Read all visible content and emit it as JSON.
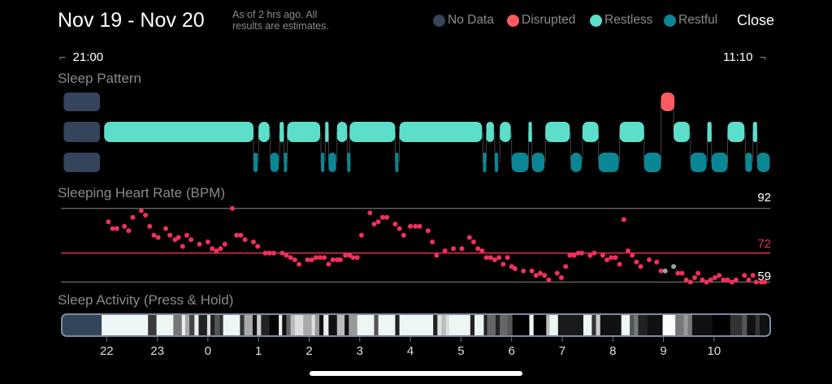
{
  "header": {
    "title": "Nov 19 - Nov 20",
    "subtitle": "As of 2 hrs ago. All results are estimates.",
    "close_label": "Close"
  },
  "legend": [
    {
      "label": "No Data",
      "color": "#34445a"
    },
    {
      "label": "Disrupted",
      "color": "#ff5a5f"
    },
    {
      "label": "Restless",
      "color": "#5cdecb"
    },
    {
      "label": "Restful",
      "color": "#0a8694"
    }
  ],
  "timeline": {
    "start": "21:00",
    "end": "11:10"
  },
  "sections": {
    "pattern": "Sleep Pattern",
    "heart": "Sleeping Heart Rate (BPM)",
    "activity": "Sleep Activity (Press & Hold)"
  },
  "chart_data": [
    {
      "type": "timeline",
      "title": "Sleep Pattern",
      "unit": "minutes after 21:00",
      "no_data": [
        [
          9,
          52
        ]
      ],
      "disrupted": [
        [
          717,
          733
        ]
      ],
      "restless": [
        [
          57,
          234
        ],
        [
          240,
          253
        ],
        [
          265,
          270
        ],
        [
          274,
          313
        ],
        [
          319,
          323
        ],
        [
          333,
          345
        ],
        [
          348,
          402
        ],
        [
          407,
          505
        ],
        [
          510,
          519
        ],
        [
          526,
          539
        ],
        [
          560,
          564
        ],
        [
          580,
          609
        ],
        [
          624,
          643
        ],
        [
          668,
          697
        ],
        [
          732,
          751
        ],
        [
          772,
          777
        ],
        [
          796,
          816
        ],
        [
          826,
          831
        ]
      ],
      "restful": [
        [
          234,
          239
        ],
        [
          254,
          264
        ],
        [
          270,
          273
        ],
        [
          314,
          318
        ],
        [
          323,
          332
        ],
        [
          345,
          349
        ],
        [
          402,
          405
        ],
        [
          506,
          509
        ],
        [
          520,
          524
        ],
        [
          540,
          560
        ],
        [
          564,
          579
        ],
        [
          610,
          623
        ],
        [
          643,
          667
        ],
        [
          697,
          717
        ],
        [
          752,
          771
        ],
        [
          777,
          796
        ],
        [
          817,
          825
        ],
        [
          831,
          846
        ]
      ]
    },
    {
      "type": "scatter",
      "title": "Sleeping Heart Rate (BPM)",
      "unit_x": "minutes after 21:00",
      "reference_lines": [
        {
          "label": "92",
          "value": 92
        },
        {
          "label": "72",
          "value": 72,
          "color": "#e8305a"
        },
        {
          "label": "59",
          "value": 59
        }
      ],
      "points": [
        [
          62,
          86
        ],
        [
          67,
          83
        ],
        [
          72,
          83
        ],
        [
          81,
          84
        ],
        [
          86,
          82
        ],
        [
          91,
          88
        ],
        [
          101,
          91
        ],
        [
          106,
          89
        ],
        [
          111,
          84
        ],
        [
          116,
          80
        ],
        [
          121,
          79
        ],
        [
          130,
          83
        ],
        [
          135,
          80
        ],
        [
          141,
          78
        ],
        [
          145,
          79
        ],
        [
          150,
          75
        ],
        [
          155,
          80
        ],
        [
          160,
          78
        ],
        [
          170,
          76
        ],
        [
          180,
          77
        ],
        [
          185,
          74
        ],
        [
          190,
          73
        ],
        [
          195,
          74
        ],
        [
          200,
          76
        ],
        [
          209,
          92
        ],
        [
          214,
          80
        ],
        [
          219,
          80
        ],
        [
          224,
          78
        ],
        [
          234,
          77
        ],
        [
          239,
          75
        ],
        [
          248,
          72
        ],
        [
          253,
          72
        ],
        [
          258,
          72
        ],
        [
          268,
          72
        ],
        [
          273,
          71
        ],
        [
          278,
          70
        ],
        [
          283,
          69
        ],
        [
          288,
          67
        ],
        [
          298,
          69
        ],
        [
          303,
          69
        ],
        [
          308,
          70
        ],
        [
          313,
          70
        ],
        [
          318,
          70
        ],
        [
          323,
          67
        ],
        [
          328,
          69
        ],
        [
          333,
          69
        ],
        [
          337,
          69
        ],
        [
          343,
          71
        ],
        [
          348,
          71
        ],
        [
          352,
          70
        ],
        [
          357,
          70
        ],
        [
          362,
          80
        ],
        [
          372,
          90
        ],
        [
          377,
          85
        ],
        [
          382,
          86
        ],
        [
          387,
          88
        ],
        [
          392,
          88
        ],
        [
          402,
          85
        ],
        [
          407,
          83
        ],
        [
          412,
          80
        ],
        [
          420,
          84
        ],
        [
          426,
          84
        ],
        [
          431,
          84
        ],
        [
          441,
          82
        ],
        [
          446,
          77
        ],
        [
          451,
          71
        ],
        [
          461,
          73
        ],
        [
          471,
          74
        ],
        [
          481,
          74
        ],
        [
          490,
          79
        ],
        [
          495,
          77
        ],
        [
          500,
          74
        ],
        [
          505,
          73
        ],
        [
          510,
          70
        ],
        [
          515,
          70
        ],
        [
          520,
          69
        ],
        [
          525,
          70
        ],
        [
          530,
          67
        ],
        [
          535,
          70
        ],
        [
          540,
          66
        ],
        [
          544,
          65
        ],
        [
          554,
          64
        ],
        [
          564,
          64
        ],
        [
          569,
          62
        ],
        [
          574,
          63
        ],
        [
          579,
          62
        ],
        [
          584,
          60
        ],
        [
          594,
          63
        ],
        [
          599,
          61
        ],
        [
          604,
          66
        ],
        [
          609,
          71
        ],
        [
          614,
          71
        ],
        [
          619,
          72
        ],
        [
          623,
          72
        ],
        [
          633,
          71
        ],
        [
          638,
          72
        ],
        [
          648,
          71
        ],
        [
          653,
          69
        ],
        [
          658,
          70
        ],
        [
          663,
          70
        ],
        [
          668,
          67
        ],
        [
          673,
          87
        ],
        [
          678,
          73
        ],
        [
          683,
          71
        ],
        [
          688,
          68
        ],
        [
          693,
          66
        ],
        [
          703,
          69
        ],
        [
          712,
          68
        ],
        [
          717,
          64
        ],
        [
          737,
          63
        ],
        [
          742,
          63
        ],
        [
          747,
          60
        ],
        [
          752,
          59
        ],
        [
          757,
          61
        ],
        [
          761,
          63
        ],
        [
          766,
          60
        ],
        [
          771,
          59
        ],
        [
          776,
          60
        ],
        [
          781,
          61
        ],
        [
          786,
          62
        ],
        [
          791,
          60
        ],
        [
          796,
          60
        ],
        [
          801,
          59
        ],
        [
          806,
          60
        ],
        [
          816,
          62
        ],
        [
          821,
          60
        ],
        [
          826,
          62
        ],
        [
          830,
          59
        ],
        [
          836,
          59
        ],
        [
          840,
          59
        ]
      ],
      "missing_points": [
        [
          722,
          64
        ],
        [
          732,
          66
        ]
      ]
    },
    {
      "type": "heatmap",
      "title": "Sleep Activity (Press & Hold)",
      "unit": "minutes after 21:00",
      "end": 844,
      "bands": [
        [
          5,
          "#34445a"
        ],
        [
          54,
          "#eef5f5"
        ],
        [
          109,
          "#3a3a3a"
        ],
        [
          119,
          "#eef5f5"
        ],
        [
          139,
          "#777777"
        ],
        [
          149,
          "#eeeeee"
        ],
        [
          153,
          "#aaaaaa"
        ],
        [
          158,
          "#444444"
        ],
        [
          164,
          "#eeeeee"
        ],
        [
          169,
          "#222222"
        ],
        [
          179,
          "#dddddd"
        ],
        [
          183,
          "#222222"
        ],
        [
          188,
          "#555555"
        ],
        [
          194,
          "#333333"
        ],
        [
          198,
          "#eef5f5"
        ],
        [
          218,
          "#333333"
        ],
        [
          223,
          "#aaaaaa"
        ],
        [
          233,
          "#111111"
        ],
        [
          238,
          "#cccccc"
        ],
        [
          243,
          "#222222"
        ],
        [
          253,
          "#000000"
        ],
        [
          264,
          "#eeeeee"
        ],
        [
          268,
          "#111111"
        ],
        [
          273,
          "#666666"
        ],
        [
          278,
          "#bbbbbb"
        ],
        [
          283,
          "#dddddd"
        ],
        [
          293,
          "#aaaaaa"
        ],
        [
          303,
          "#dddddd"
        ],
        [
          307,
          "#999999"
        ],
        [
          312,
          "#111111"
        ],
        [
          317,
          "#eeeeee"
        ],
        [
          323,
          "#111111"
        ],
        [
          333,
          "#bbbbbb"
        ],
        [
          342,
          "#111111"
        ],
        [
          347,
          "#999999"
        ],
        [
          357,
          "#eef5f5"
        ],
        [
          377,
          "#555555"
        ],
        [
          382,
          "#eef5f5"
        ],
        [
          402,
          "#222222"
        ],
        [
          407,
          "#eef5f5"
        ],
        [
          447,
          "#222222"
        ],
        [
          452,
          "#dddddd"
        ],
        [
          457,
          "#bbbbbb"
        ],
        [
          462,
          "#dddddd"
        ],
        [
          466,
          "#eef5f5"
        ],
        [
          491,
          "#222222"
        ],
        [
          496,
          "#eef5f5"
        ],
        [
          507,
          "#222222"
        ],
        [
          511,
          "#666666"
        ],
        [
          521,
          "#222222"
        ],
        [
          526,
          "#666666"
        ],
        [
          535,
          "#555555"
        ],
        [
          541,
          "#000000"
        ],
        [
          561,
          "#eef5f5"
        ],
        [
          566,
          "#000000"
        ],
        [
          581,
          "#bbbbbb"
        ],
        [
          585,
          "#eef5f5"
        ],
        [
          595,
          "#1a1a1a"
        ],
        [
          625,
          "#eef5f5"
        ],
        [
          635,
          "#333333"
        ],
        [
          640,
          "#cccccc"
        ],
        [
          645,
          "#111111"
        ],
        [
          670,
          "#eef5f5"
        ],
        [
          680,
          "#555555"
        ],
        [
          685,
          "#777777"
        ],
        [
          690,
          "#222222"
        ],
        [
          701,
          "#111111"
        ],
        [
          719,
          "#ffffff"
        ],
        [
          734,
          "#777777"
        ],
        [
          744,
          "#999999"
        ],
        [
          749,
          "#777777"
        ],
        [
          754,
          "#111111"
        ],
        [
          778,
          "#000000"
        ],
        [
          799,
          "#333333"
        ],
        [
          813,
          "#555555"
        ],
        [
          819,
          "#111111"
        ],
        [
          829,
          "#333333"
        ],
        [
          834,
          "#111111"
        ]
      ],
      "ticks": [
        {
          "label": "22",
          "min": 60
        },
        {
          "label": "23",
          "min": 120
        },
        {
          "label": "0",
          "min": 180
        },
        {
          "label": "1",
          "min": 240
        },
        {
          "label": "2",
          "min": 300
        },
        {
          "label": "3",
          "min": 360
        },
        {
          "label": "4",
          "min": 420
        },
        {
          "label": "5",
          "min": 480
        },
        {
          "label": "6",
          "min": 540
        },
        {
          "label": "7",
          "min": 600
        },
        {
          "label": "8",
          "min": 660
        },
        {
          "label": "9",
          "min": 720
        },
        {
          "label": "10",
          "min": 780
        }
      ]
    }
  ]
}
